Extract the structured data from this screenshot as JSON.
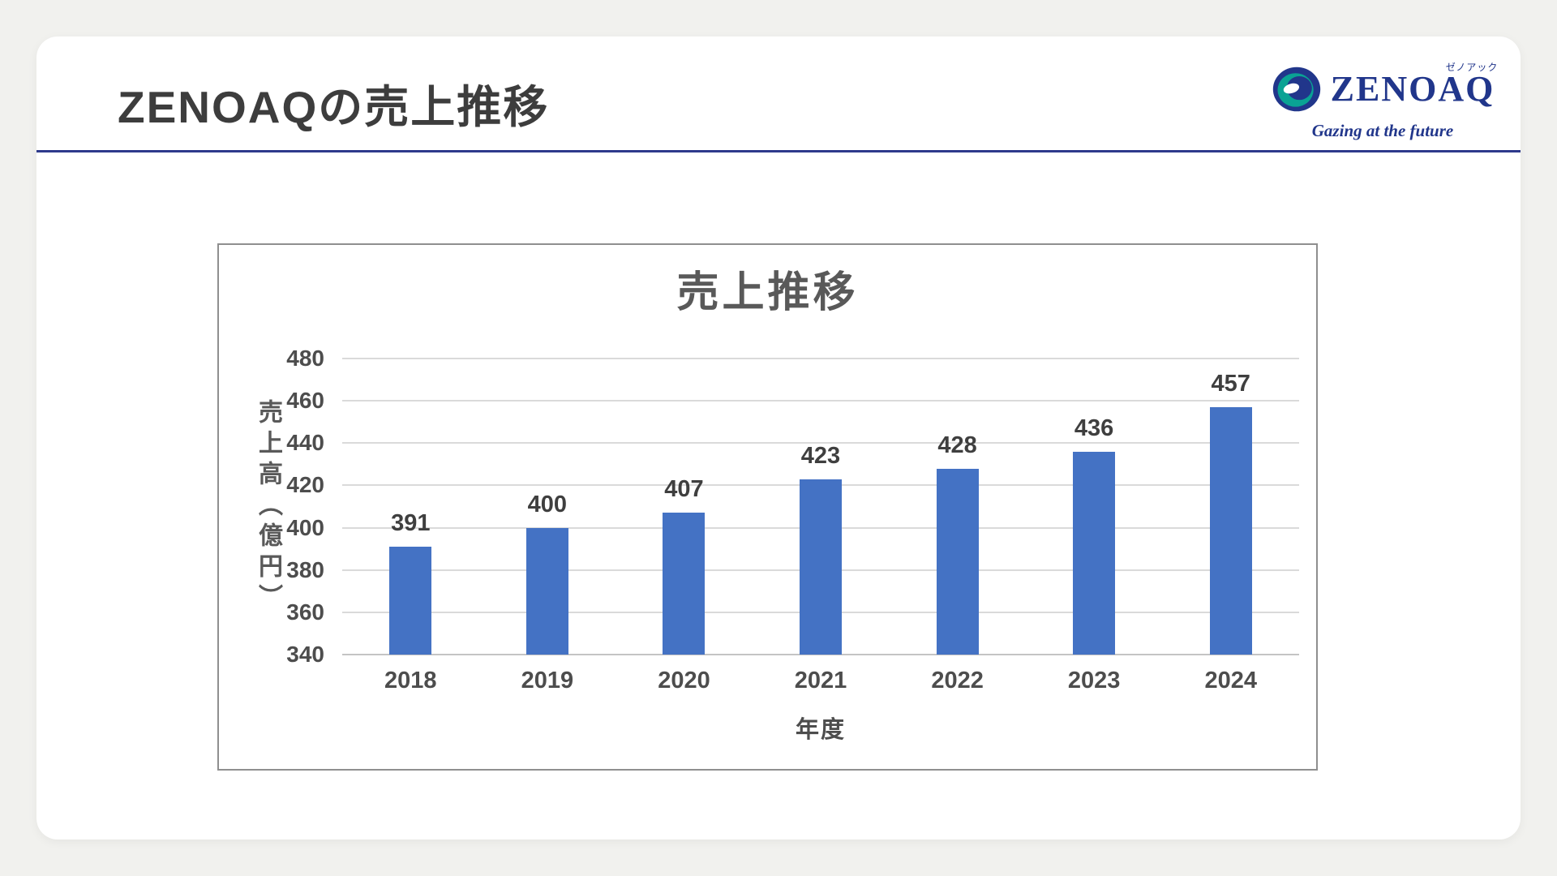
{
  "page": {
    "title": "ZENOAQの売上推移"
  },
  "logo": {
    "brand": "ZENOAQ",
    "katakana": "ゼノアック",
    "tagline": "Gazing at the future",
    "navy": "#21368b",
    "teal": "#0aa294"
  },
  "chart_data": {
    "type": "bar",
    "title": "売上推移",
    "categories": [
      "2018",
      "2019",
      "2020",
      "2021",
      "2022",
      "2023",
      "2024"
    ],
    "values": [
      391,
      400,
      407,
      423,
      428,
      436,
      457
    ],
    "xlabel": "年度",
    "ylabel": "売上高（億円）",
    "ylim": [
      340,
      480
    ],
    "yticks": [
      340,
      360,
      380,
      400,
      420,
      440,
      460,
      480
    ],
    "bar_color": "#4472C4",
    "gridline_color": "#dadada",
    "grid": true,
    "legend": false
  }
}
